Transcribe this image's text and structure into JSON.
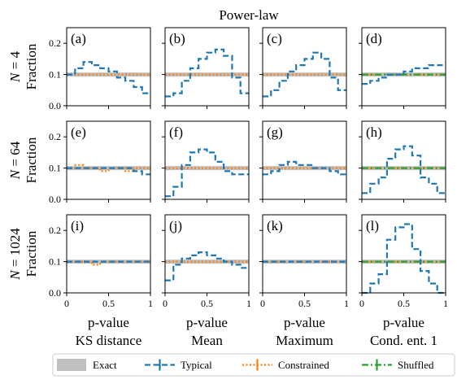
{
  "chart_data": {
    "type": "line",
    "title": "Power-law",
    "bins_x": [
      0.05,
      0.15,
      0.25,
      0.35,
      0.45,
      0.55,
      0.65,
      0.75,
      0.85,
      0.95
    ],
    "xlim": [
      0,
      1
    ],
    "ylim": [
      0,
      0.25
    ],
    "xticks": [
      "0",
      "0.5",
      "1"
    ],
    "yticks": [
      "0.0",
      "0.1",
      "0.2"
    ],
    "row_labels": [
      "N = 4",
      "N = 64",
      "N = 1024"
    ],
    "ylabel": "Fraction",
    "xlabels": [
      [
        "p-value",
        "KS distance"
      ],
      [
        "p-value",
        "Mean"
      ],
      [
        "p-value",
        "Maximum"
      ],
      [
        "p-value",
        "Cond. ent. 1"
      ]
    ],
    "legend": [
      "Exact",
      "Typical",
      "Constrained",
      "Shuffled"
    ],
    "colors": {
      "exact": "#bfbfbf",
      "typical": "#1f77b4",
      "constrained": "#ff7f0e",
      "shuffled": "#2ca02c"
    },
    "panels": [
      {
        "tag": "(a)",
        "row": 0,
        "col": 0,
        "typical": [
          0.1,
          0.12,
          0.14,
          0.13,
          0.12,
          0.11,
          0.09,
          0.08,
          0.06,
          0.04
        ],
        "constrained": [
          0.1,
          0.1,
          0.1,
          0.1,
          0.1,
          0.1,
          0.1,
          0.1,
          0.1,
          0.1
        ]
      },
      {
        "tag": "(b)",
        "row": 0,
        "col": 1,
        "typical": [
          0.03,
          0.04,
          0.08,
          0.12,
          0.15,
          0.17,
          0.18,
          0.16,
          0.09,
          0.04
        ],
        "constrained": [
          0.1,
          0.1,
          0.1,
          0.1,
          0.1,
          0.1,
          0.1,
          0.1,
          0.1,
          0.1
        ]
      },
      {
        "tag": "(c)",
        "row": 0,
        "col": 2,
        "typical": [
          0.03,
          0.05,
          0.08,
          0.11,
          0.13,
          0.15,
          0.17,
          0.15,
          0.09,
          0.05
        ],
        "constrained": [
          0.1,
          0.1,
          0.1,
          0.1,
          0.1,
          0.1,
          0.1,
          0.1,
          0.1,
          0.1
        ]
      },
      {
        "tag": "(d)",
        "row": 0,
        "col": 3,
        "typical": [
          0.07,
          0.08,
          0.09,
          0.1,
          0.1,
          0.11,
          0.12,
          0.12,
          0.13,
          0.13
        ],
        "constrained": [
          0.1,
          0.1,
          0.1,
          0.1,
          0.1,
          0.1,
          0.1,
          0.1,
          0.1,
          0.1
        ],
        "shuffled": [
          0.1,
          0.1,
          0.1,
          0.1,
          0.1,
          0.1,
          0.1,
          0.1,
          0.1,
          0.1
        ]
      },
      {
        "tag": "(e)",
        "row": 1,
        "col": 0,
        "typical": [
          0.1,
          0.1,
          0.1,
          0.1,
          0.1,
          0.1,
          0.1,
          0.1,
          0.09,
          0.08
        ],
        "constrained": [
          0.1,
          0.11,
          0.1,
          0.1,
          0.09,
          0.1,
          0.1,
          0.09,
          0.1,
          0.1
        ]
      },
      {
        "tag": "(f)",
        "row": 1,
        "col": 1,
        "typical": [
          0.01,
          0.04,
          0.11,
          0.15,
          0.16,
          0.15,
          0.12,
          0.09,
          0.08,
          0.08
        ],
        "constrained": [
          0.1,
          0.1,
          0.1,
          0.1,
          0.1,
          0.1,
          0.1,
          0.1,
          0.1,
          0.1
        ]
      },
      {
        "tag": "(g)",
        "row": 1,
        "col": 2,
        "typical": [
          0.08,
          0.09,
          0.11,
          0.12,
          0.11,
          0.11,
          0.1,
          0.1,
          0.09,
          0.08
        ],
        "constrained": [
          0.1,
          0.1,
          0.1,
          0.1,
          0.1,
          0.1,
          0.1,
          0.1,
          0.1,
          0.1
        ]
      },
      {
        "tag": "(h)",
        "row": 1,
        "col": 3,
        "typical": [
          0.02,
          0.05,
          0.07,
          0.13,
          0.16,
          0.17,
          0.14,
          0.07,
          0.05,
          0.02
        ],
        "constrained": [
          0.1,
          0.1,
          0.1,
          0.1,
          0.1,
          0.1,
          0.1,
          0.1,
          0.1,
          0.1
        ],
        "shuffled": [
          0.1,
          0.1,
          0.1,
          0.1,
          0.1,
          0.1,
          0.1,
          0.1,
          0.1,
          0.1
        ]
      },
      {
        "tag": "(i)",
        "row": 2,
        "col": 0,
        "typical": [
          0.1,
          0.1,
          0.1,
          0.1,
          0.1,
          0.1,
          0.1,
          0.1,
          0.1,
          0.1
        ],
        "constrained": [
          0.1,
          0.1,
          0.1,
          0.09,
          0.1,
          0.1,
          0.1,
          0.1,
          0.1,
          0.1
        ]
      },
      {
        "tag": "(j)",
        "row": 2,
        "col": 1,
        "typical": [
          0.04,
          0.09,
          0.11,
          0.12,
          0.13,
          0.12,
          0.11,
          0.1,
          0.09,
          0.08
        ],
        "constrained": [
          0.1,
          0.1,
          0.1,
          0.1,
          0.1,
          0.1,
          0.1,
          0.1,
          0.1,
          0.1
        ]
      },
      {
        "tag": "(k)",
        "row": 2,
        "col": 2,
        "typical": [
          0.1,
          0.1,
          0.1,
          0.1,
          0.1,
          0.1,
          0.1,
          0.1,
          0.1,
          0.1
        ],
        "constrained": [
          0.1,
          0.1,
          0.1,
          0.1,
          0.1,
          0.1,
          0.1,
          0.1,
          0.1,
          0.1
        ]
      },
      {
        "tag": "(l)",
        "row": 2,
        "col": 3,
        "typical": [
          0.0,
          0.03,
          0.06,
          0.17,
          0.21,
          0.22,
          0.14,
          0.07,
          0.03,
          0.0
        ],
        "constrained": [
          0.1,
          0.1,
          0.1,
          0.1,
          0.1,
          0.1,
          0.1,
          0.1,
          0.1,
          0.1
        ],
        "shuffled": [
          0.1,
          0.1,
          0.1,
          0.1,
          0.1,
          0.1,
          0.1,
          0.1,
          0.1,
          0.1
        ]
      }
    ]
  }
}
